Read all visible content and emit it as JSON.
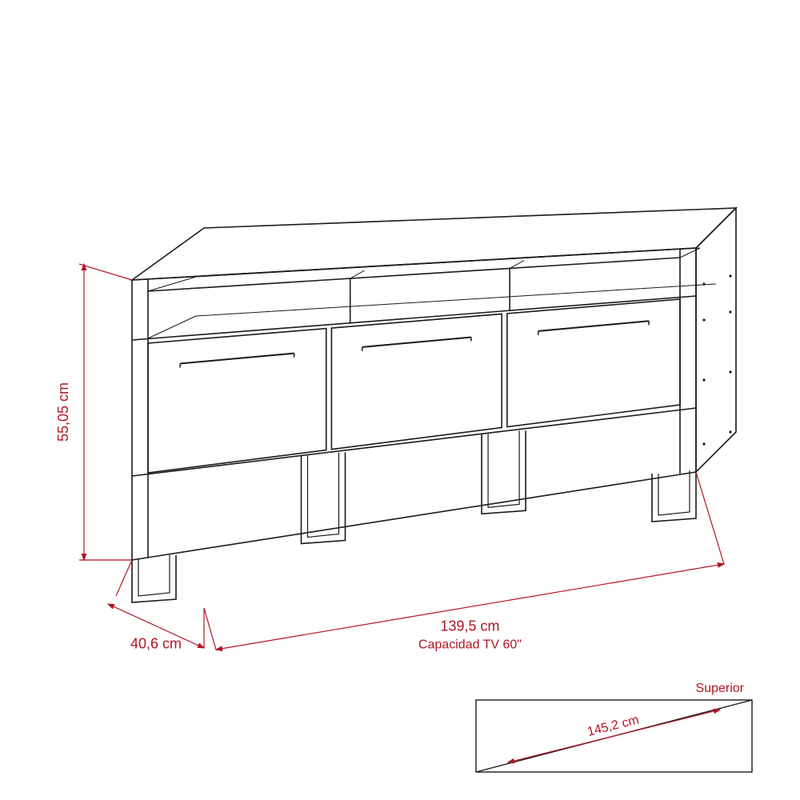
{
  "colors": {
    "accent": "#b01522",
    "line": "#1a1a1a",
    "bg": "#ffffff"
  },
  "stroke": {
    "furniture_width": 1.6,
    "dim_width": 1.2,
    "arrow_size": 8
  },
  "labels": {
    "height": "55,05 cm",
    "depth": "40,6 cm",
    "width": "139,5 cm",
    "capacity": "Capacidad TV 60\"",
    "superior": "Superior",
    "diagonal": "145,2 cm"
  },
  "font": {
    "label_size": 18,
    "small_size": 16
  }
}
